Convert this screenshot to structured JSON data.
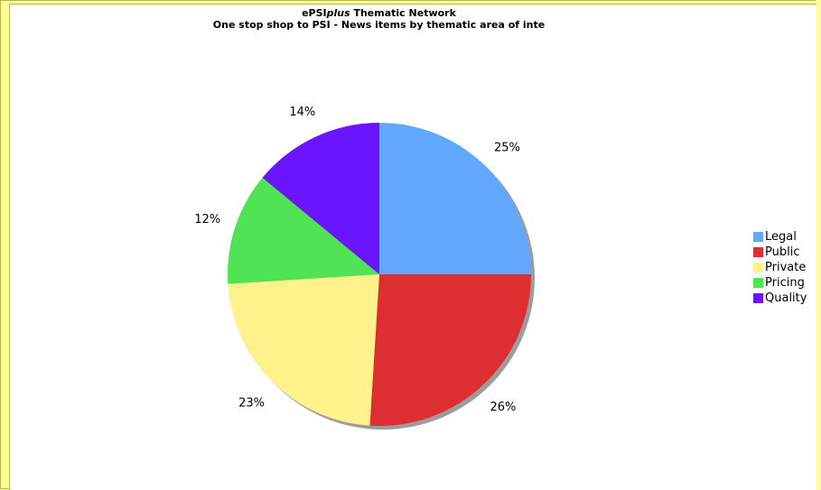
{
  "chart_data": {
    "type": "pie",
    "title_prefix": "ePSI",
    "title_italic": "plus",
    "title_suffix": " Thematic Network",
    "subtitle": "One stop shop to PSI - News items by thematic area of inte",
    "slices": [
      {
        "label": "Legal",
        "value": 25,
        "display": "25%",
        "color": "#62a8ff"
      },
      {
        "label": "Public",
        "value": 26,
        "display": "26%",
        "color": "#dd2e32"
      },
      {
        "label": "Private",
        "value": 23,
        "display": "23%",
        "color": "#fff28c"
      },
      {
        "label": "Pricing",
        "value": 12,
        "display": "12%",
        "color": "#50e355"
      },
      {
        "label": "Quality",
        "value": 14,
        "display": "14%",
        "color": "#6a14ff"
      }
    ],
    "legend_position": "right"
  }
}
